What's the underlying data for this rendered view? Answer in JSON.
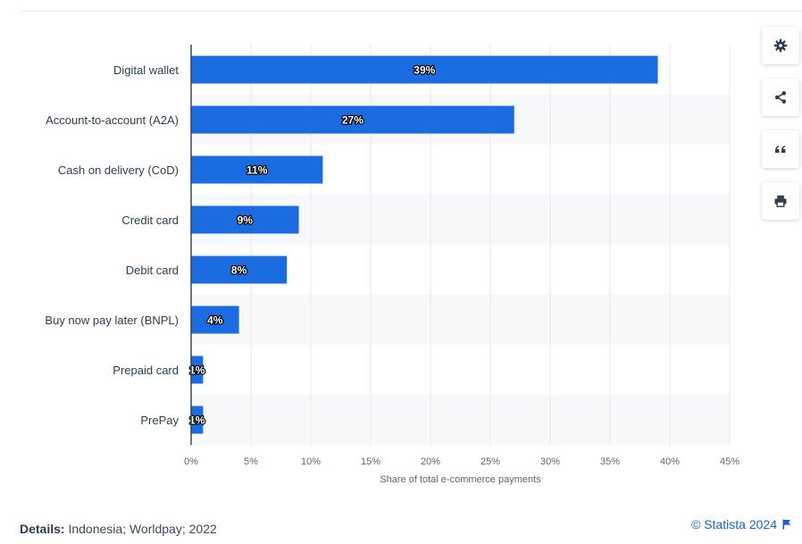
{
  "chart_data": {
    "type": "bar",
    "orientation": "horizontal",
    "categories": [
      "Digital wallet",
      "Account-to-account (A2A)",
      "Cash on delivery (CoD)",
      "Credit card",
      "Debit card",
      "Buy now pay later (BNPL)",
      "Prepaid card",
      "PrePay"
    ],
    "values": [
      39,
      27,
      11,
      9,
      8,
      4,
      1,
      1
    ],
    "data_labels": [
      "39%",
      "27%",
      "11%",
      "9%",
      "8%",
      "4%",
      "1%",
      "1%"
    ],
    "title": "",
    "xlabel": "Share of total e-commerce payments",
    "ylabel": "",
    "xlim": [
      0,
      45
    ],
    "x_ticks": [
      0,
      5,
      10,
      15,
      20,
      25,
      30,
      35,
      40,
      45
    ],
    "x_tick_labels": [
      "0%",
      "5%",
      "10%",
      "15%",
      "20%",
      "25%",
      "30%",
      "35%",
      "40%",
      "45%"
    ],
    "grid": true,
    "alternating_row_bands": true,
    "bar_color": "#1a6ce0"
  },
  "footer": {
    "details_label": "Details:",
    "details_text": "Indonesia; Worldpay; 2022",
    "copyright": "© Statista 2024"
  },
  "toolbar": {
    "icons": [
      "gear-icon",
      "share-icon",
      "quote-icon",
      "print-icon"
    ]
  },
  "colors": {
    "accent": "#1a62c8",
    "band": "#f7f8fa",
    "grid": "#e4e7eb",
    "axis": "#5c6670",
    "text": "#2d3e50"
  }
}
